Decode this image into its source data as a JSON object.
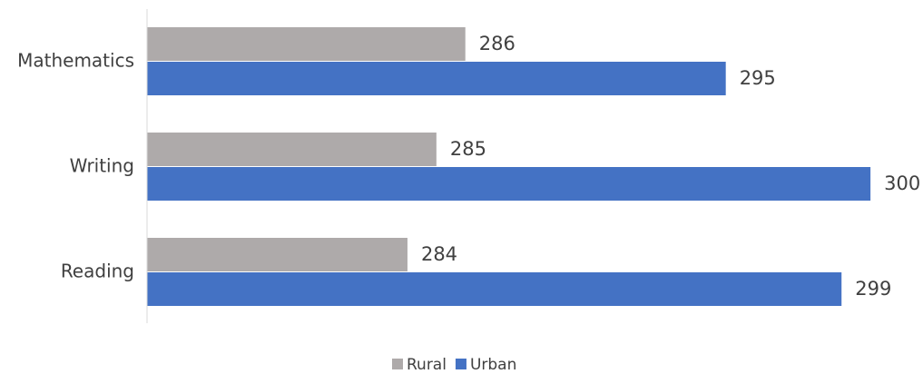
{
  "chart_data": {
    "type": "barh",
    "categories": [
      "Mathematics",
      "Writing",
      "Reading"
    ],
    "series": [
      {
        "name": "Rural",
        "color": "#aeaaaa",
        "values": [
          286,
          285,
          284
        ]
      },
      {
        "name": "Urban",
        "color": "#4472c4",
        "values": [
          295,
          300,
          299
        ]
      }
    ],
    "xlim": [
      275,
      301
    ],
    "legend": "bottom"
  }
}
